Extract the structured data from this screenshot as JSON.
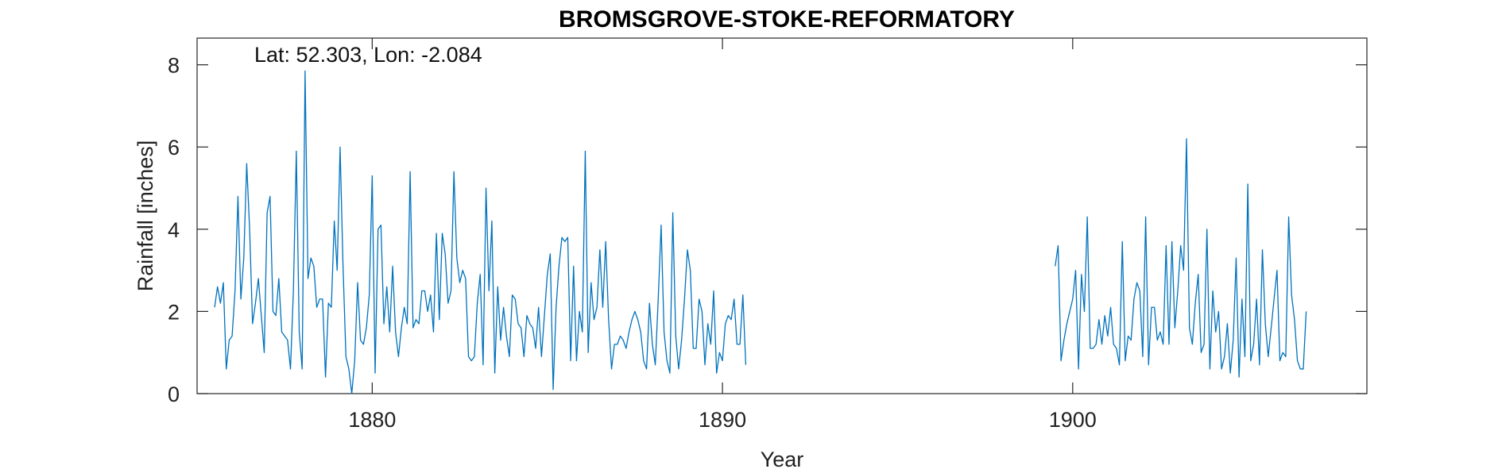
{
  "chart_data": {
    "type": "line",
    "title": "BROMSGROVE-STOKE-REFORMATORY",
    "annotation": "Lat: 52.303, Lon: -2.084",
    "xlabel": "Year",
    "ylabel": "Rainfall [inches]",
    "xlim": [
      1875.0,
      1908.4
    ],
    "ylim": [
      0,
      8.65
    ],
    "xticks": [
      1880,
      1890,
      1900
    ],
    "yticks": [
      0,
      2,
      4,
      6,
      8
    ],
    "line_color": "#0072BD",
    "grid": false,
    "series": [
      {
        "name": "",
        "segments": [
          {
            "start_year": 1875.5,
            "step": 0.08333,
            "values": [
              2.1,
              2.6,
              2.2,
              2.7,
              0.6,
              1.3,
              1.4,
              2.5,
              4.8,
              2.3,
              3.3,
              5.6,
              4.0,
              1.7,
              2.2,
              2.8,
              1.9,
              1.0,
              4.4,
              4.8,
              2.0,
              1.9,
              2.8,
              1.5,
              1.4,
              1.3,
              0.6,
              2.5,
              5.9,
              1.5,
              0.6,
              7.85,
              2.8,
              3.3,
              3.1,
              2.1,
              2.3,
              2.3,
              0.4,
              2.2,
              2.1,
              4.2,
              3.0,
              6.0,
              3.1,
              0.9,
              0.6,
              0.0,
              0.8,
              2.7,
              1.3,
              1.2,
              1.6,
              2.4,
              5.3,
              0.5,
              4.0,
              4.1,
              1.7,
              2.6,
              1.5,
              3.1,
              1.5,
              0.9,
              1.6,
              2.1,
              1.7,
              5.4,
              1.6,
              1.8,
              1.7,
              2.5,
              2.5,
              2.0,
              2.4,
              1.5,
              3.9,
              1.8,
              3.9,
              3.4,
              2.2,
              2.5,
              5.4,
              3.3,
              2.7,
              3.0,
              2.8,
              0.9,
              0.8,
              0.9,
              2.2,
              2.9,
              0.7,
              5.0,
              2.5,
              4.2,
              0.5,
              2.6,
              1.3,
              2.1,
              1.4,
              0.9,
              2.4,
              2.3,
              1.7,
              1.6,
              0.9,
              1.9,
              1.7,
              1.6,
              1.1,
              2.1,
              0.9,
              1.9,
              2.9,
              3.4,
              0.1,
              2.1,
              3.1,
              3.8,
              3.7,
              3.8,
              0.8,
              3.1,
              0.8,
              2.0,
              1.5,
              5.9,
              1.0,
              2.7,
              1.8,
              2.1,
              3.5,
              2.1,
              3.7,
              1.8,
              0.6,
              1.2,
              1.2,
              1.4,
              1.3,
              1.1,
              1.5,
              1.8,
              2.0,
              1.8,
              1.5,
              0.8,
              0.6,
              2.2,
              1.2,
              0.7,
              2.3,
              4.1,
              1.5,
              0.8,
              0.5,
              4.4,
              1.4,
              0.6,
              1.3,
              2.3,
              3.5,
              3.0,
              1.1,
              1.1,
              2.3,
              2.0,
              0.7,
              1.7,
              1.2,
              2.5,
              0.5,
              1.0,
              0.8,
              1.7,
              1.9,
              1.8,
              2.3,
              1.2,
              1.2,
              2.4,
              0.7
            ]
          },
          {
            "start_year": 1899.5,
            "step": 0.08333,
            "values": [
              3.1,
              3.6,
              0.8,
              1.3,
              1.7,
              2.0,
              2.3,
              3.0,
              0.6,
              2.9,
              2.0,
              4.3,
              1.1,
              1.1,
              1.2,
              1.8,
              1.2,
              1.9,
              1.4,
              2.1,
              1.2,
              1.1,
              0.7,
              3.7,
              0.8,
              1.4,
              1.3,
              2.3,
              2.7,
              2.5,
              0.9,
              4.3,
              0.7,
              2.1,
              2.1,
              1.3,
              1.5,
              1.2,
              3.6,
              1.2,
              3.7,
              1.6,
              2.5,
              3.6,
              3.0,
              6.2,
              1.6,
              1.2,
              2.2,
              2.9,
              1.0,
              1.2,
              4.0,
              0.6,
              2.5,
              1.5,
              2.0,
              0.6,
              0.9,
              1.7,
              0.5,
              1.3,
              3.3,
              0.4,
              2.3,
              0.9,
              5.1,
              0.8,
              1.2,
              2.3,
              0.7,
              3.5,
              1.7,
              0.9,
              1.6,
              2.3,
              3.0,
              0.8,
              1.0,
              0.9,
              4.3,
              2.4,
              1.8,
              0.8,
              0.6,
              0.6,
              2.0
            ]
          }
        ]
      }
    ]
  }
}
